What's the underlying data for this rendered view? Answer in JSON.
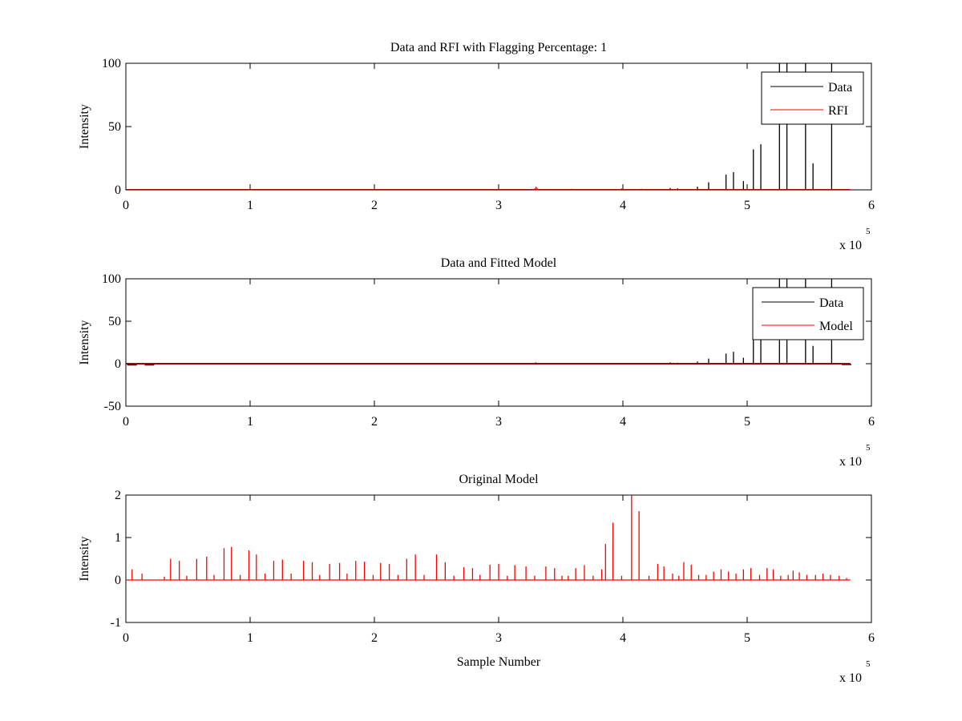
{
  "chart_data": [
    {
      "type": "line",
      "title": "Data and RFI with Flagging Percentage: 1",
      "xlabel": "",
      "ylabel": "Intensity",
      "xlim": [
        0,
        6
      ],
      "ylim": [
        0,
        100
      ],
      "xticks": [
        "0",
        "1",
        "2",
        "3",
        "4",
        "5",
        "6"
      ],
      "yticks": [
        "0",
        "50",
        "100"
      ],
      "x_exponent": {
        "base": "x 10",
        "power": "5"
      },
      "legend": {
        "position": "top-right",
        "entries": [
          "Data",
          "RFI"
        ]
      },
      "grid": false,
      "series": [
        {
          "name": "Data",
          "color": "#000000",
          "spikes_x": [
            3.38,
            3.59,
            3.72,
            3.83,
            3.99,
            4.15,
            4.38,
            4.44,
            4.6,
            4.69,
            4.83,
            4.89,
            4.97,
            5.05,
            5.11,
            5.26,
            5.32,
            5.47,
            5.53,
            5.68
          ],
          "spikes_y": [
            0.6,
            0.8,
            0.5,
            0.6,
            1.0,
            0.8,
            1.5,
            1.2,
            2.5,
            6.0,
            12.0,
            14.0,
            7.0,
            32.0,
            36.0,
            100.0,
            100.0,
            100.0,
            21.0,
            100.0
          ]
        },
        {
          "name": "RFI",
          "color": "#ff0000",
          "spikes_x": [
            3.29,
            3.3,
            3.31
          ],
          "spikes_y": [
            1.2,
            2.5,
            1.5
          ]
        }
      ]
    },
    {
      "type": "line",
      "title": "Data and Fitted Model",
      "xlabel": "",
      "ylabel": "Intensity",
      "xlim": [
        0,
        6
      ],
      "ylim": [
        -50,
        100
      ],
      "xticks": [
        "0",
        "1",
        "2",
        "3",
        "4",
        "5",
        "6"
      ],
      "yticks": [
        "-50",
        "0",
        "50",
        "100"
      ],
      "x_exponent": {
        "base": "x 10",
        "power": "5"
      },
      "legend": {
        "position": "top-right",
        "entries": [
          "Data",
          "Model"
        ]
      },
      "grid": false,
      "series": [
        {
          "name": "Data",
          "color": "#000000",
          "spikes_x": [
            3.3,
            4.38,
            4.44,
            4.6,
            4.69,
            4.83,
            4.89,
            4.97,
            5.05,
            5.11,
            5.26,
            5.32,
            5.47,
            5.53,
            5.68
          ],
          "spikes_y": [
            1.5,
            1.5,
            1.2,
            2.5,
            6.0,
            12.0,
            14.0,
            7.0,
            32.0,
            36.0,
            100.0,
            100.0,
            100.0,
            21.0,
            100.0
          ],
          "dips_x": [
            0.05,
            0.19,
            5.8
          ],
          "dips_y": [
            -1.5,
            -1.5,
            -1.0
          ]
        },
        {
          "name": "Model",
          "color": "#ff0000",
          "spikes_x": [],
          "spikes_y": []
        }
      ]
    },
    {
      "type": "line",
      "title": "Original Model",
      "xlabel": "Sample Number",
      "ylabel": "Intensity",
      "xlim": [
        0,
        6
      ],
      "ylim": [
        -1,
        2
      ],
      "xticks": [
        "0",
        "1",
        "2",
        "3",
        "4",
        "5",
        "6"
      ],
      "yticks": [
        "-1",
        "0",
        "1",
        "2"
      ],
      "x_exponent": {
        "base": "x 10",
        "power": "5"
      },
      "legend": null,
      "grid": false,
      "series": [
        {
          "name": "",
          "color": "#ff0000",
          "spikes_x": [
            0.05,
            0.13,
            0.31,
            0.36,
            0.43,
            0.49,
            0.57,
            0.65,
            0.71,
            0.79,
            0.85,
            0.92,
            0.99,
            1.05,
            1.12,
            1.19,
            1.26,
            1.33,
            1.43,
            1.5,
            1.56,
            1.64,
            1.72,
            1.78,
            1.85,
            1.92,
            1.99,
            2.05,
            2.12,
            2.19,
            2.26,
            2.33,
            2.4,
            2.5,
            2.57,
            2.64,
            2.72,
            2.79,
            2.85,
            2.93,
            3.0,
            3.07,
            3.13,
            3.22,
            3.29,
            3.38,
            3.45,
            3.51,
            3.56,
            3.62,
            3.69,
            3.76,
            3.83,
            3.86,
            3.92,
            3.99,
            4.07,
            4.13,
            4.21,
            4.28,
            4.33,
            4.4,
            4.45,
            4.49,
            4.55,
            4.61,
            4.67,
            4.73,
            4.79,
            4.85,
            4.91,
            4.97,
            5.03,
            5.1,
            5.16,
            5.21,
            5.27,
            5.33,
            5.37,
            5.42,
            5.48,
            5.55,
            5.61,
            5.67,
            5.74,
            5.8
          ],
          "spikes_y": [
            0.25,
            0.15,
            0.08,
            0.5,
            0.45,
            0.1,
            0.5,
            0.55,
            0.12,
            0.75,
            0.78,
            0.12,
            0.7,
            0.6,
            0.15,
            0.45,
            0.48,
            0.15,
            0.45,
            0.42,
            0.12,
            0.38,
            0.4,
            0.15,
            0.45,
            0.43,
            0.12,
            0.4,
            0.38,
            0.12,
            0.5,
            0.6,
            0.12,
            0.6,
            0.42,
            0.1,
            0.3,
            0.28,
            0.12,
            0.36,
            0.38,
            0.1,
            0.35,
            0.32,
            0.1,
            0.32,
            0.28,
            0.1,
            0.1,
            0.28,
            0.35,
            0.1,
            0.25,
            0.85,
            1.35,
            0.1,
            2.1,
            1.62,
            0.1,
            0.38,
            0.32,
            0.15,
            0.1,
            0.42,
            0.36,
            0.12,
            0.12,
            0.2,
            0.25,
            0.2,
            0.15,
            0.25,
            0.28,
            0.12,
            0.28,
            0.25,
            0.1,
            0.12,
            0.22,
            0.18,
            0.12,
            0.12,
            0.15,
            0.12,
            0.1,
            0.05
          ]
        }
      ]
    }
  ]
}
